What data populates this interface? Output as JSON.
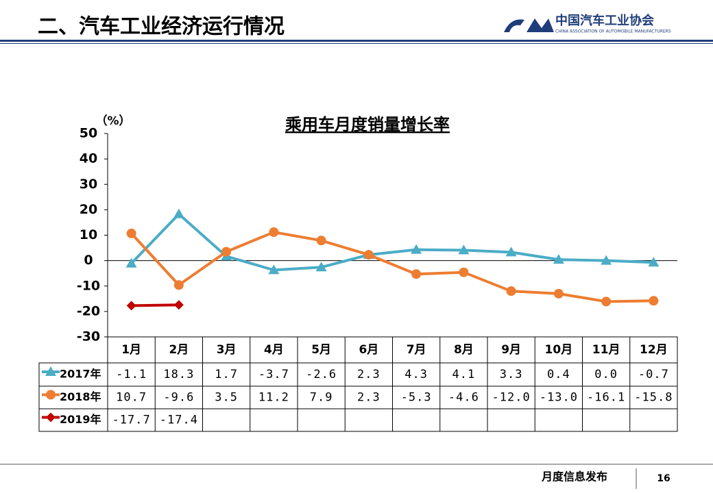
{
  "header": {
    "title": "二、汽车工业经济运行情况",
    "logo_text": "中国汽车工业协会",
    "logo_subtext": "CHINA ASSOCIATION OF AUTOMOBILE MANUFACTURERS"
  },
  "footer": {
    "text": "月度信息发布",
    "page": "16"
  },
  "chart_data": {
    "type": "line",
    "title": "乘用车月度销量增长率",
    "y_unit": "（%）",
    "categories": [
      "1月",
      "2月",
      "3月",
      "4月",
      "5月",
      "6月",
      "7月",
      "8月",
      "9月",
      "10月",
      "11月",
      "12月"
    ],
    "series": [
      {
        "name": "2017年",
        "color": "#4bacc6",
        "marker": "triangle",
        "values": [
          -1.1,
          18.3,
          1.7,
          -3.7,
          -2.6,
          2.3,
          4.3,
          4.1,
          3.3,
          0.4,
          0.0,
          -0.7
        ],
        "value_labels": [
          "-1.1",
          "18.3",
          "1.7",
          "-3.7",
          "-2.6",
          "2.3",
          "4.3",
          "4.1",
          "3.3",
          "0.4",
          "0.0",
          "-0.7"
        ]
      },
      {
        "name": "2018年",
        "color": "#ed7d31",
        "marker": "circle",
        "values": [
          10.7,
          -9.6,
          3.5,
          11.2,
          7.9,
          2.3,
          -5.3,
          -4.6,
          -12.0,
          -13.0,
          -16.1,
          -15.8
        ],
        "value_labels": [
          "10.7",
          "-9.6",
          "3.5",
          "11.2",
          "7.9",
          "2.3",
          "-5.3",
          "-4.6",
          "-12.0",
          "-13.0",
          "-16.1",
          "-15.8"
        ]
      },
      {
        "name": "2019年",
        "color": "#c00000",
        "marker": "diamond",
        "values": [
          -17.7,
          -17.4,
          null,
          null,
          null,
          null,
          null,
          null,
          null,
          null,
          null,
          null
        ],
        "value_labels": [
          "-17.7",
          "-17.4",
          null,
          null,
          null,
          null,
          null,
          null,
          null,
          null,
          null,
          null
        ]
      }
    ],
    "ylim": [
      -30,
      50
    ],
    "yticks": [
      50,
      40,
      30,
      20,
      10,
      0,
      -10,
      -20,
      -30
    ]
  }
}
